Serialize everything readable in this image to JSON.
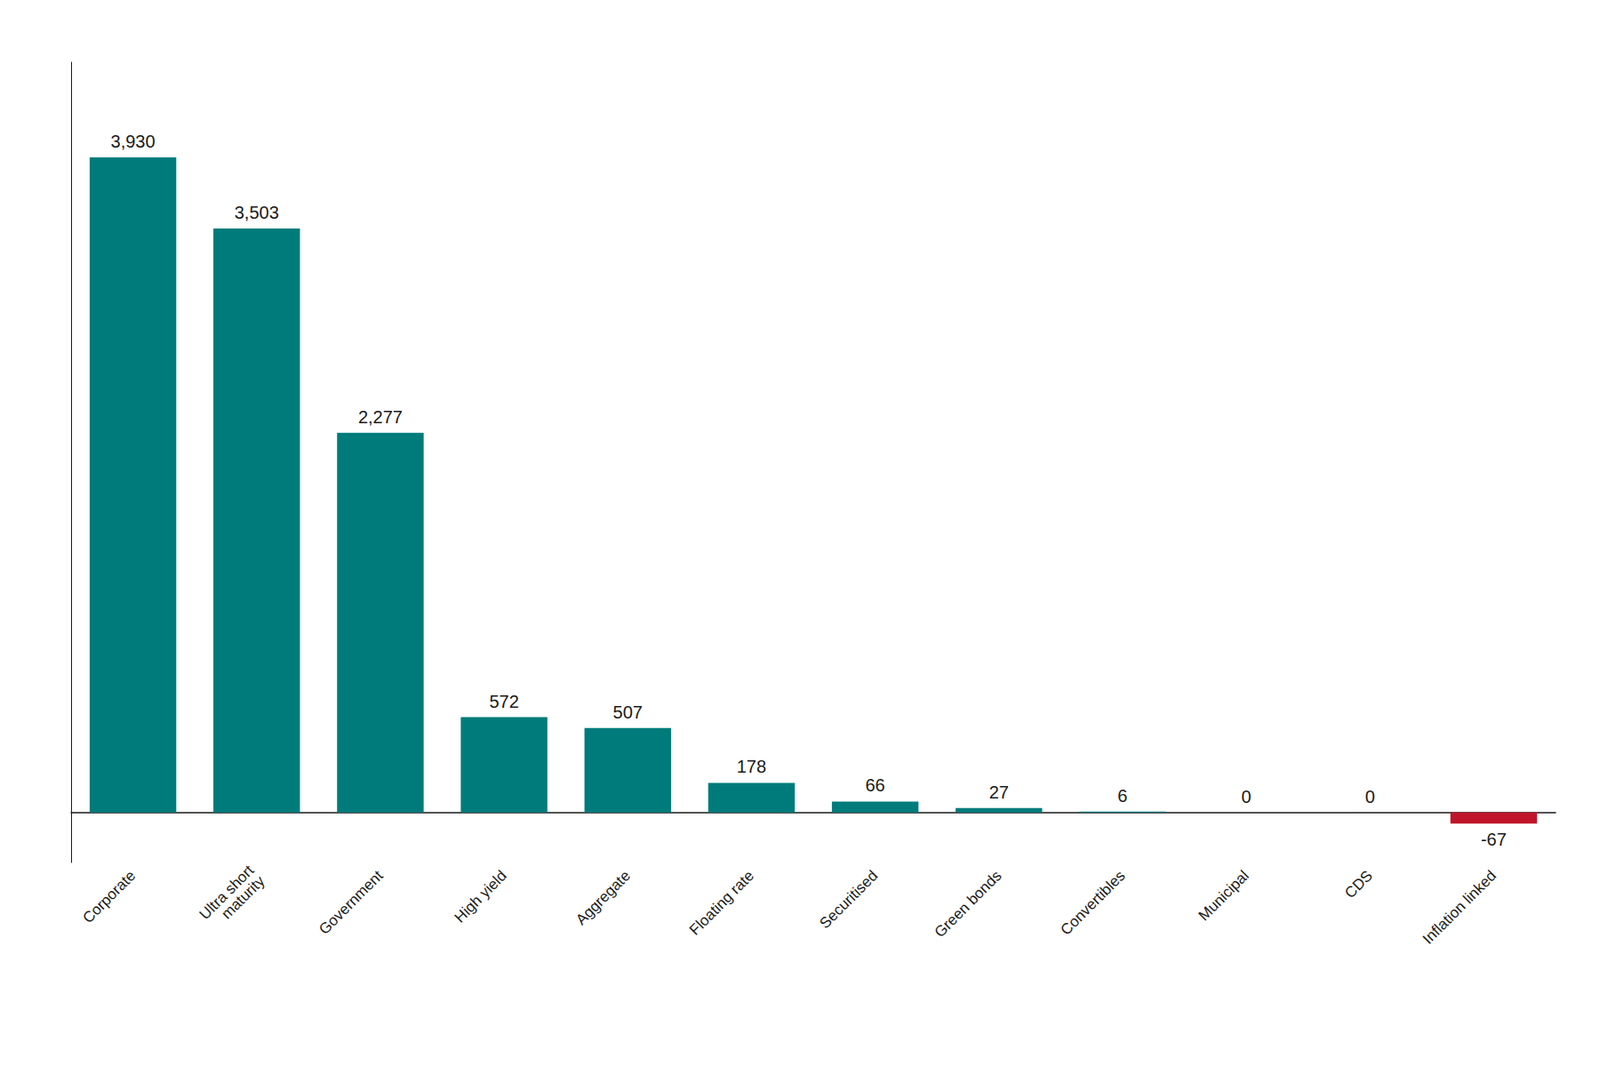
{
  "chart_data": {
    "type": "bar",
    "categories": [
      "Corporate",
      "Ultra short\nmaturity",
      "Government",
      "High yield",
      "Aggregate",
      "Floating rate",
      "Securitised",
      "Green bonds",
      "Convertibles",
      "Municipal",
      "CDS",
      "Inflation linked"
    ],
    "values": [
      3930,
      3503,
      2277,
      572,
      507,
      178,
      66,
      27,
      6,
      0,
      0,
      -67
    ],
    "value_labels": [
      "3,930",
      "3,503",
      "2,277",
      "572",
      "507",
      "178",
      "66",
      "27",
      "6",
      "0",
      "0",
      "-67"
    ],
    "colors": [
      "#007b7b",
      "#007b7b",
      "#007b7b",
      "#007b7b",
      "#007b7b",
      "#007b7b",
      "#007b7b",
      "#007b7b",
      "#007b7b",
      "#007b7b",
      "#007b7b",
      "#c0152a"
    ],
    "ylim": [
      -300,
      4500
    ],
    "data_labels": true,
    "tick_labels": "x",
    "grid": false
  }
}
